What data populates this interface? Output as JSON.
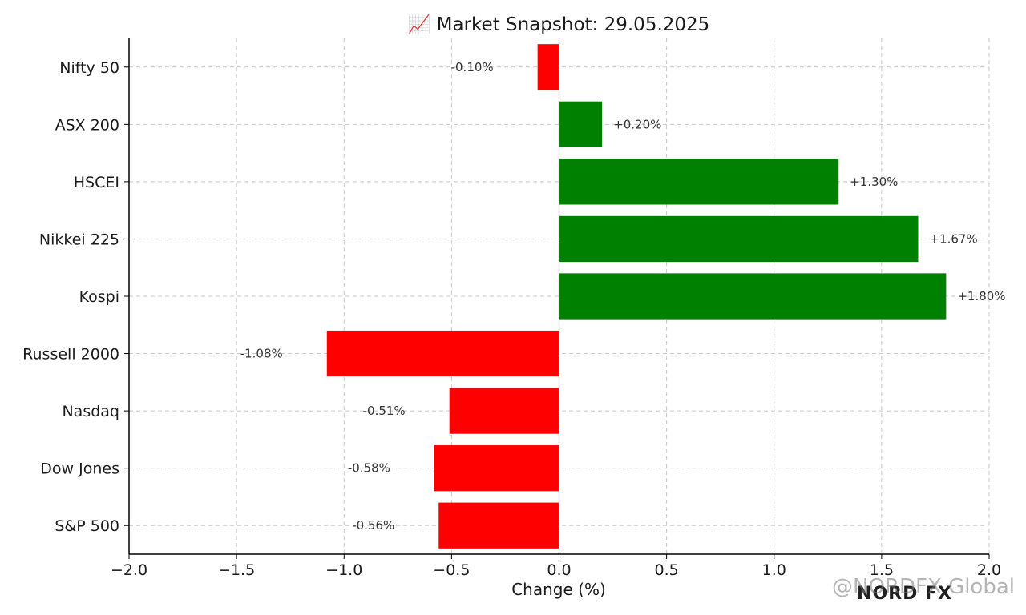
{
  "chart_data": {
    "type": "bar",
    "orientation": "horizontal",
    "title": "📈 Market Snapshot: 29.05.2025",
    "xlabel": "Change (%)",
    "ylabel": "",
    "xlim": [
      -2.0,
      2.0
    ],
    "xticks": [
      "−2.0",
      "−1.5",
      "−1.0",
      "−0.5",
      "0.0",
      "0.5",
      "1.0",
      "1.5",
      "2.0"
    ],
    "categories": [
      "S&P 500",
      "Dow Jones",
      "Nasdaq",
      "Russell 2000",
      "Kospi",
      "Nikkei 225",
      "HSCEI",
      "ASX 200",
      "Nifty 50"
    ],
    "values": [
      -0.56,
      -0.58,
      -0.51,
      -1.08,
      1.8,
      1.67,
      1.3,
      0.2,
      -0.1
    ],
    "value_labels": [
      "-0.56%",
      "-0.58%",
      "-0.51%",
      "-1.08%",
      "+1.80%",
      "+1.67%",
      "+1.30%",
      "+0.20%",
      "-0.10%"
    ],
    "colors": {
      "positive": "#008000",
      "negative": "#ff0000"
    },
    "grid": true
  },
  "watermark": "@NORDFX Global",
  "logo": "NORD FX"
}
